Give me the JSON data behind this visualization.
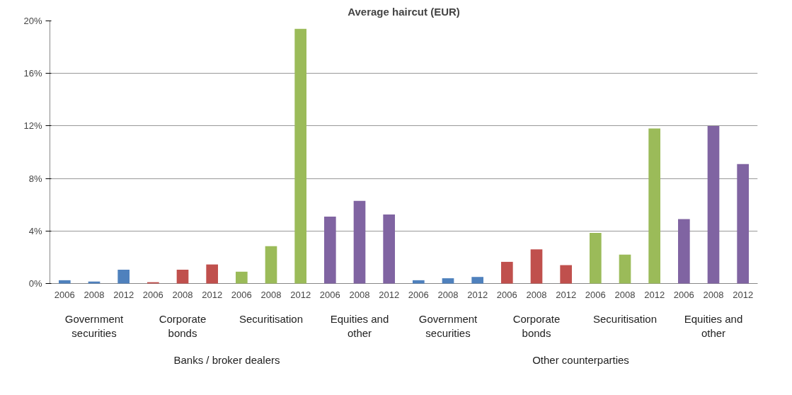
{
  "chart_data": {
    "type": "bar",
    "title": "Average haircut (EUR)",
    "categories": [
      "2006",
      "2008",
      "2012",
      "2006",
      "2008",
      "2012",
      "2006",
      "2008",
      "2012",
      "2006",
      "2008",
      "2012",
      "2006",
      "2008",
      "2012",
      "2006",
      "2008",
      "2012",
      "2006",
      "2008",
      "2012",
      "2006",
      "2008",
      "2012"
    ],
    "values": [
      0.25,
      0.15,
      1.05,
      0.1,
      1.05,
      1.45,
      0.9,
      2.85,
      19.4,
      5.1,
      6.3,
      5.25,
      0.25,
      0.4,
      0.5,
      1.65,
      2.6,
      1.4,
      3.85,
      2.2,
      11.8,
      4.9,
      12.0,
      9.1
    ],
    "colors": [
      "#4f81bd",
      "#4f81bd",
      "#4f81bd",
      "#c0504d",
      "#c0504d",
      "#c0504d",
      "#9bbb59",
      "#9bbb59",
      "#9bbb59",
      "#8064a2",
      "#8064a2",
      "#8064a2",
      "#4f81bd",
      "#4f81bd",
      "#4f81bd",
      "#c0504d",
      "#c0504d",
      "#c0504d",
      "#9bbb59",
      "#9bbb59",
      "#9bbb59",
      "#8064a2",
      "#8064a2",
      "#8064a2"
    ],
    "ylim": [
      0,
      20
    ],
    "yticks": [
      {
        "value": 0,
        "label": "0%"
      },
      {
        "value": 4,
        "label": "4%"
      },
      {
        "value": 8,
        "label": "8%"
      },
      {
        "value": 12,
        "label": "12%"
      },
      {
        "value": 16,
        "label": "16%"
      },
      {
        "value": 20,
        "label": "20%"
      }
    ],
    "grid": "y",
    "annotations": [
      "Government securities",
      "Corporate bonds",
      "Securitisation",
      "Equities and other",
      "Government securities",
      "Corporate bonds",
      "Securitisation",
      "Equities and other",
      "Banks / broker dealers",
      "Other counterparties"
    ]
  }
}
